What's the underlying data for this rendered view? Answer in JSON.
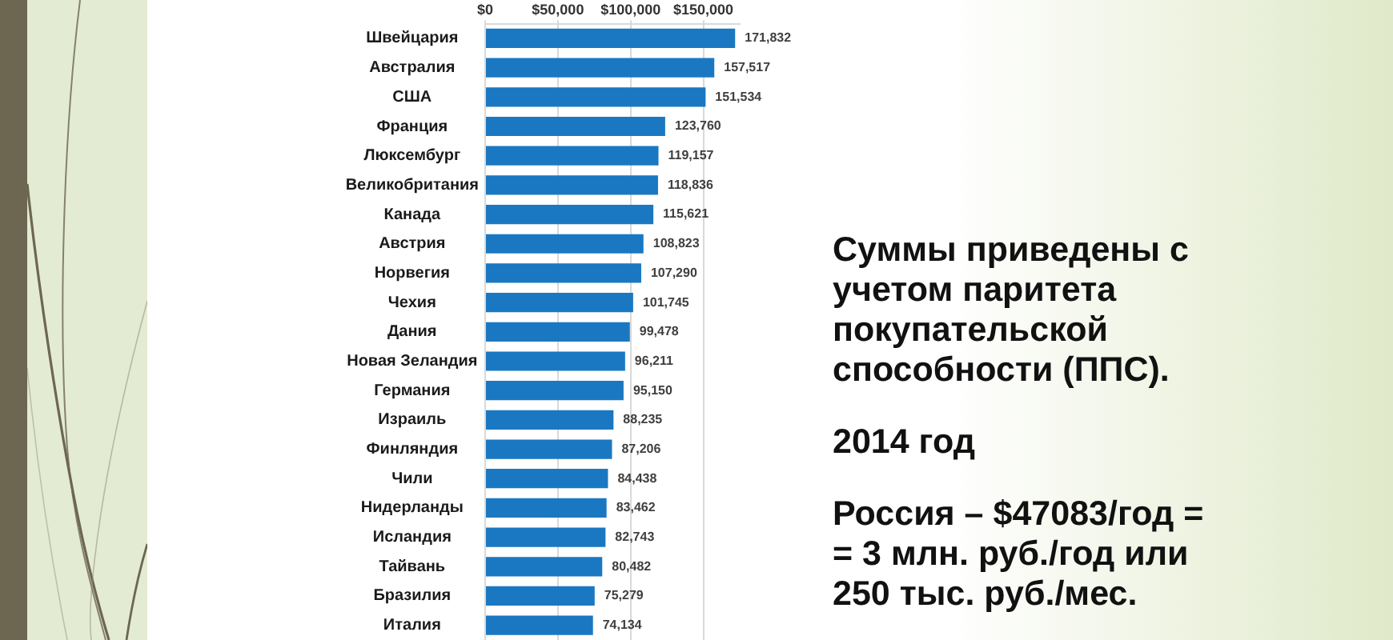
{
  "chart_data": {
    "type": "bar",
    "orientation": "horizontal",
    "categories": [
      "Швейцария",
      "Австралия",
      "США",
      "Франция",
      "Люксембург",
      "Великобритания",
      "Канада",
      "Австрия",
      "Норвегия",
      "Чехия",
      "Дания",
      "Новая Зеландия",
      "Германия",
      "Израиль",
      "Финляндия",
      "Чили",
      "Нидерланды",
      "Исландия",
      "Тайвань",
      "Бразилия",
      "Италия"
    ],
    "values": [
      171832,
      157517,
      151534,
      123760,
      119157,
      118836,
      115621,
      108823,
      107290,
      101745,
      99478,
      96211,
      95150,
      88235,
      87206,
      84438,
      83462,
      82743,
      80482,
      75279,
      74134
    ],
    "value_labels": [
      "171,832",
      "157,517",
      "151,534",
      "123,760",
      "119,157",
      "118,836",
      "115,621",
      "108,823",
      "107,290",
      "101,745",
      "99,478",
      "96,211",
      "95,150",
      "88,235",
      "87,206",
      "84,438",
      "83,462",
      "82,743",
      "80,482",
      "75,279",
      "74,134"
    ],
    "color": "#1a78c2",
    "xlim": [
      0,
      175000
    ],
    "xticks": [
      {
        "value": 0,
        "label": "$0"
      },
      {
        "value": 50000,
        "label": "$50,000"
      },
      {
        "value": 100000,
        "label": "$100,000"
      },
      {
        "value": 150000,
        "label": "$150,000"
      }
    ],
    "grid": "x",
    "annotations": [
      "Суммы приведены с учетом паритета покупательской способности (ППС).",
      "2014 год",
      "Россия – $47083/год = = 3 млн. руб./год или 250 тыс. руб./мес."
    ]
  }
}
